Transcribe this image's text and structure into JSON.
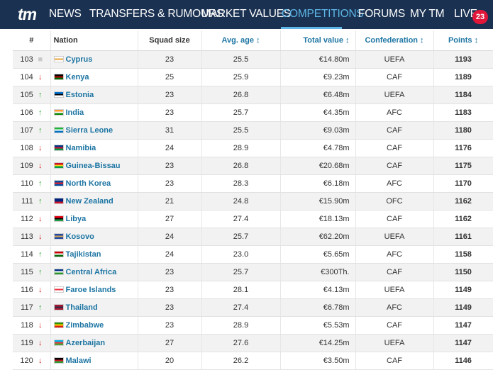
{
  "nav": {
    "logo": "tm",
    "items": [
      "NEWS",
      "TRANSFERS & RUMOURS",
      "MARKET VALUES",
      "COMPETITIONS",
      "FORUMS",
      "MY TM",
      "LIVE"
    ],
    "active_index": 3,
    "live_count": "23"
  },
  "table": {
    "headers": {
      "rank": "#",
      "nation": "Nation",
      "squad": "Squad size",
      "age": "Avg. age",
      "value": "Total value",
      "confed": "Confederation",
      "points": "Points",
      "sort_glyph": "↕"
    },
    "rows": [
      {
        "rank": "103",
        "trend": "same",
        "nation": "Cyprus",
        "squad": "23",
        "age": "25.5",
        "value": "€14.80m",
        "confed": "UEFA",
        "points": "1193",
        "flag": [
          "#ffffff",
          "#e6a23c",
          "#ffffff"
        ]
      },
      {
        "rank": "104",
        "trend": "down",
        "nation": "Kenya",
        "squad": "25",
        "age": "25.9",
        "value": "€9.23m",
        "confed": "CAF",
        "points": "1189",
        "flag": [
          "#000000",
          "#bb0000",
          "#006600"
        ]
      },
      {
        "rank": "105",
        "trend": "up",
        "nation": "Estonia",
        "squad": "23",
        "age": "26.8",
        "value": "€6.48m",
        "confed": "UEFA",
        "points": "1184",
        "flag": [
          "#0072ce",
          "#000000",
          "#ffffff"
        ]
      },
      {
        "rank": "106",
        "trend": "up",
        "nation": "India",
        "squad": "23",
        "age": "25.7",
        "value": "€4.35m",
        "confed": "AFC",
        "points": "1183",
        "flag": [
          "#ff9933",
          "#ffffff",
          "#138808"
        ]
      },
      {
        "rank": "107",
        "trend": "up",
        "nation": "Sierra Leone",
        "squad": "31",
        "age": "25.5",
        "value": "€9.03m",
        "confed": "CAF",
        "points": "1180",
        "flag": [
          "#1eb53a",
          "#ffffff",
          "#0072c6"
        ]
      },
      {
        "rank": "108",
        "trend": "down",
        "nation": "Namibia",
        "squad": "24",
        "age": "28.9",
        "value": "€4.78m",
        "confed": "CAF",
        "points": "1176",
        "flag": [
          "#003580",
          "#d21034",
          "#009543"
        ]
      },
      {
        "rank": "109",
        "trend": "down",
        "nation": "Guinea-Bissau",
        "squad": "23",
        "age": "26.8",
        "value": "€20.68m",
        "confed": "CAF",
        "points": "1175",
        "flag": [
          "#ce1126",
          "#fcd116",
          "#009e49"
        ]
      },
      {
        "rank": "110",
        "trend": "up",
        "nation": "North Korea",
        "squad": "23",
        "age": "28.3",
        "value": "€6.18m",
        "confed": "AFC",
        "points": "1170",
        "flag": [
          "#024fa2",
          "#ed1c27",
          "#024fa2"
        ]
      },
      {
        "rank": "111",
        "trend": "up",
        "nation": "New Zealand",
        "squad": "21",
        "age": "24.8",
        "value": "€15.90m",
        "confed": "OFC",
        "points": "1162",
        "flag": [
          "#00247d",
          "#00247d",
          "#cc142b"
        ]
      },
      {
        "rank": "112",
        "trend": "down",
        "nation": "Libya",
        "squad": "27",
        "age": "27.4",
        "value": "€18.13m",
        "confed": "CAF",
        "points": "1162",
        "flag": [
          "#e70013",
          "#000000",
          "#239e46"
        ]
      },
      {
        "rank": "113",
        "trend": "down",
        "nation": "Kosovo",
        "squad": "24",
        "age": "25.7",
        "value": "€62.20m",
        "confed": "UEFA",
        "points": "1161",
        "flag": [
          "#244aa5",
          "#d0a650",
          "#244aa5"
        ]
      },
      {
        "rank": "114",
        "trend": "up",
        "nation": "Tajikistan",
        "squad": "24",
        "age": "23.0",
        "value": "€5.65m",
        "confed": "AFC",
        "points": "1158",
        "flag": [
          "#cc0000",
          "#ffffff",
          "#006600"
        ]
      },
      {
        "rank": "115",
        "trend": "up",
        "nation": "Central Africa",
        "squad": "23",
        "age": "25.7",
        "value": "€300Th.",
        "confed": "CAF",
        "points": "1150",
        "flag": [
          "#003082",
          "#ffffff",
          "#289728"
        ]
      },
      {
        "rank": "116",
        "trend": "down",
        "nation": "Faroe Islands",
        "squad": "23",
        "age": "28.1",
        "value": "€4.13m",
        "confed": "UEFA",
        "points": "1149",
        "flag": [
          "#ffffff",
          "#ef303e",
          "#ffffff"
        ]
      },
      {
        "rank": "117",
        "trend": "up",
        "nation": "Thailand",
        "squad": "23",
        "age": "27.4",
        "value": "€6.78m",
        "confed": "AFC",
        "points": "1149",
        "flag": [
          "#a51931",
          "#2d2a4a",
          "#a51931"
        ]
      },
      {
        "rank": "118",
        "trend": "down",
        "nation": "Zimbabwe",
        "squad": "23",
        "age": "28.9",
        "value": "€5.53m",
        "confed": "CAF",
        "points": "1147",
        "flag": [
          "#319208",
          "#ffd200",
          "#de2010"
        ]
      },
      {
        "rank": "119",
        "trend": "down",
        "nation": "Azerbaijan",
        "squad": "27",
        "age": "27.6",
        "value": "€14.25m",
        "confed": "UEFA",
        "points": "1147",
        "flag": [
          "#00b5e2",
          "#ef3340",
          "#509e2f"
        ]
      },
      {
        "rank": "120",
        "trend": "down",
        "nation": "Malawi",
        "squad": "20",
        "age": "26.2",
        "value": "€3.50m",
        "confed": "CAF",
        "points": "1146",
        "flag": [
          "#000000",
          "#ce1126",
          "#339e35"
        ]
      }
    ]
  },
  "colors": {
    "nav_bg": "#1a3151",
    "nav_active": "#5db6e6",
    "link": "#1d75a3",
    "trend_up": "#2aa52d",
    "trend_down": "#d11d1d",
    "live_badge": "#e0163b"
  },
  "icons": {
    "trend_up": "arrow-up-icon",
    "trend_down": "arrow-down-icon",
    "trend_same": "square-icon"
  }
}
